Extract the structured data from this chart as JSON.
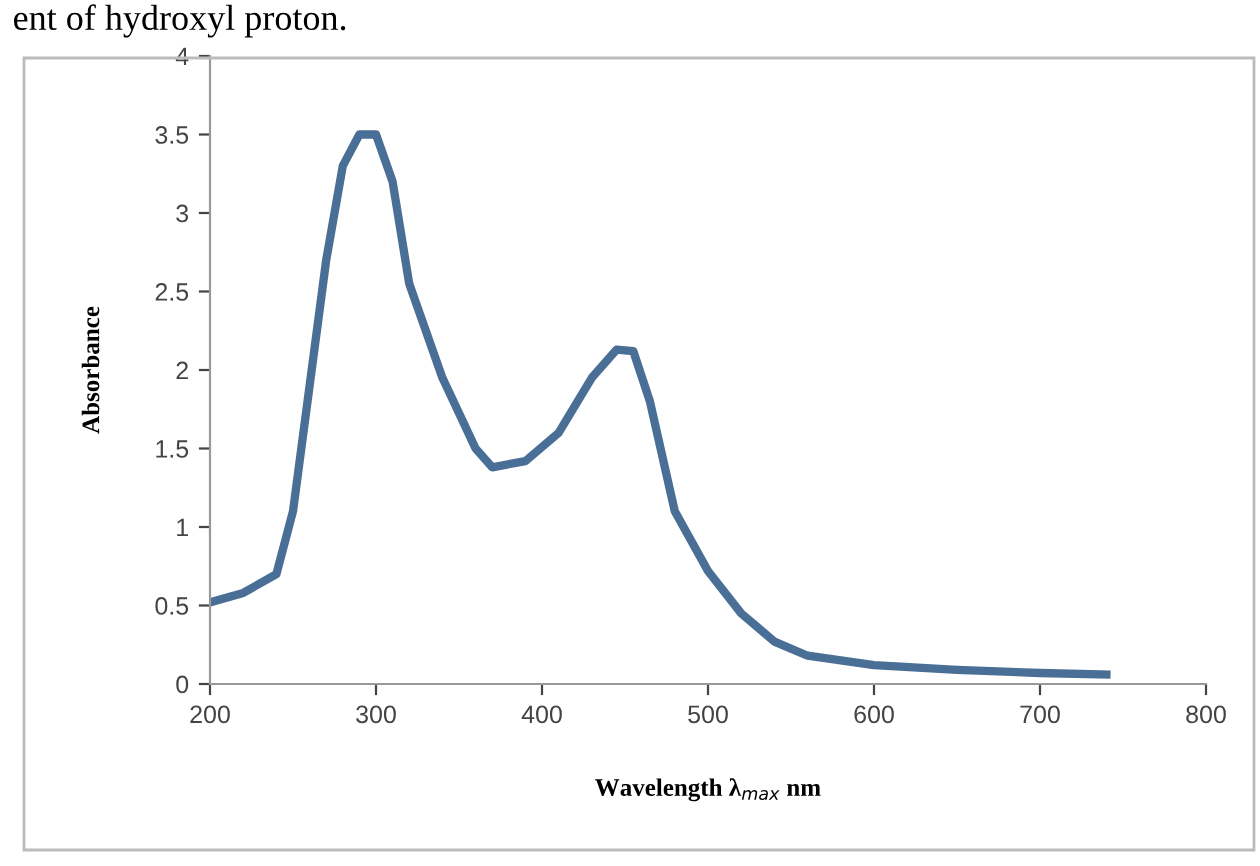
{
  "chart_data": {
    "type": "line",
    "xlabel": "Wavelength λ$_{max}$ nm",
    "ylabel": "Absorbance",
    "annotations": [
      "ent of hydroxyl proton."
    ],
    "x": [
      200,
      220,
      240,
      250,
      260,
      270,
      280,
      290,
      300,
      310,
      320,
      340,
      360,
      370,
      390,
      410,
      430,
      445,
      455,
      465,
      480,
      500,
      520,
      540,
      560,
      600,
      650,
      700,
      740
    ],
    "series": [
      {
        "color": "#4a6f96",
        "values": [
          0.52,
          0.58,
          0.7,
          1.1,
          1.9,
          2.7,
          3.3,
          3.5,
          3.5,
          3.2,
          2.55,
          1.95,
          1.5,
          1.38,
          1.42,
          1.6,
          1.95,
          2.13,
          2.12,
          1.8,
          1.1,
          0.72,
          0.45,
          0.27,
          0.18,
          0.12,
          0.09,
          0.07,
          0.06
        ]
      }
    ],
    "xlim": [
      200,
      800
    ],
    "xticks": [
      200,
      300,
      400,
      500,
      600,
      700,
      800
    ],
    "ylim": [
      0,
      4
    ],
    "yticks": [
      0,
      0.5,
      1,
      1.5,
      2,
      2.5,
      3,
      3.5,
      4
    ],
    "grid": false,
    "legend": false,
    "marker": "none",
    "line_style": "solid"
  }
}
